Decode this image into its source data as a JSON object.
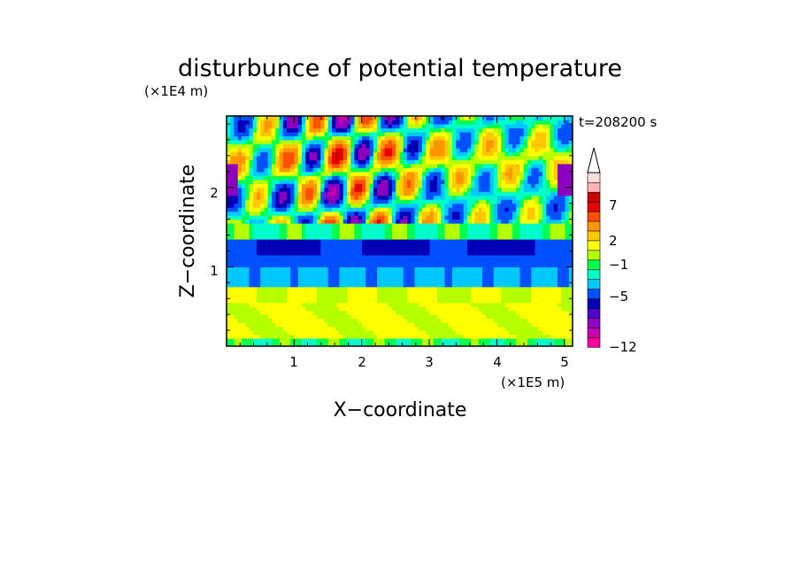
{
  "chart_data": {
    "type": "heatmap",
    "title": "disturbunce of potential temperature",
    "time_label": "t=208200 s",
    "xlabel": "X−coordinate",
    "ylabel": "Z−coordinate",
    "x_unit": "(×1E5 m)",
    "y_unit": "(×1E4 m)",
    "x_ticks": [
      "1",
      "2",
      "3",
      "4",
      "5"
    ],
    "y_ticks": [
      "1",
      "2"
    ],
    "xlim": [
      0,
      5.12
    ],
    "ylim": [
      0,
      2.9
    ],
    "colorbar": {
      "tick_labels": [
        "7",
        "2",
        "−1",
        "−5",
        "−12"
      ],
      "extend": "max",
      "colors": [
        "#ff009f",
        "#c800b4",
        "#8c00be",
        "#5000c8",
        "#0000b4",
        "#0050ff",
        "#00c8ff",
        "#00ffc8",
        "#00ff50",
        "#b4ff00",
        "#ffff00",
        "#ffc800",
        "#ff9600",
        "#ff5000",
        "#e60000",
        "#c80000",
        "#ffb4b4",
        "#ffdcdc"
      ]
    },
    "bands": [
      {
        "z": [
          0.0,
          0.12
        ],
        "level": "green"
      },
      {
        "z": [
          0.12,
          0.55
        ],
        "level": "yellow"
      },
      {
        "z": [
          0.55,
          0.75
        ],
        "level": "yellow-light"
      },
      {
        "z": [
          0.75,
          1.0
        ],
        "level": "cyan"
      },
      {
        "z": [
          1.0,
          1.15
        ],
        "level": "blue-light"
      },
      {
        "z": [
          1.15,
          1.35
        ],
        "level": "blue"
      },
      {
        "z": [
          1.35,
          1.6
        ],
        "level": "green"
      },
      {
        "z": [
          1.6,
          2.9
        ],
        "level": "mixed"
      }
    ]
  }
}
